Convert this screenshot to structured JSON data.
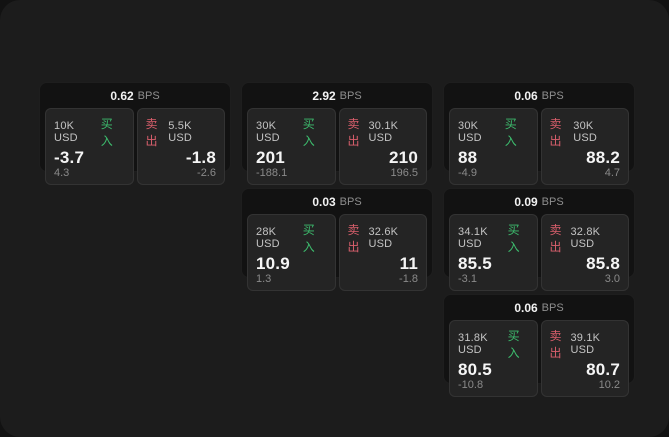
{
  "labels": {
    "bps_unit": "BPS",
    "buy": "买入",
    "sell": "卖出"
  },
  "colors": {
    "buy_accent": "#3dbd6e",
    "sell_accent": "#d95f6c",
    "surface": "#1c1c1c",
    "card": "#121212",
    "tile": "#242424"
  },
  "cards": [
    {
      "bps": "0.62",
      "buy": {
        "size": "10K USD",
        "value": "-3.7",
        "delta": "4.3"
      },
      "sell": {
        "size": "5.5K USD",
        "value": "-1.8",
        "delta": "-2.6"
      }
    },
    {
      "bps": "2.92",
      "buy": {
        "size": "30K USD",
        "value": "201",
        "delta": "-188.1"
      },
      "sell": {
        "size": "30.1K USD",
        "value": "210",
        "delta": "196.5"
      }
    },
    {
      "bps": "0.06",
      "buy": {
        "size": "30K USD",
        "value": "88",
        "delta": "-4.9"
      },
      "sell": {
        "size": "30K USD",
        "value": "88.2",
        "delta": "4.7"
      }
    },
    {
      "bps": "0.03",
      "buy": {
        "size": "28K USD",
        "value": "10.9",
        "delta": "1.3"
      },
      "sell": {
        "size": "32.6K USD",
        "value": "11",
        "delta": "-1.8"
      }
    },
    {
      "bps": "0.09",
      "buy": {
        "size": "34.1K USD",
        "value": "85.5",
        "delta": "-3.1"
      },
      "sell": {
        "size": "32.8K USD",
        "value": "85.8",
        "delta": "3.0"
      }
    },
    {
      "bps": "0.06",
      "buy": {
        "size": "31.8K USD",
        "value": "80.5",
        "delta": "-10.8"
      },
      "sell": {
        "size": "39.1K USD",
        "value": "80.7",
        "delta": "10.2"
      }
    }
  ]
}
